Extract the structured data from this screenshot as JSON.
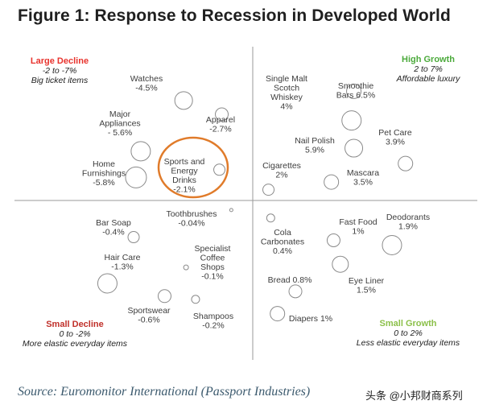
{
  "title": "Figure 1: Response to Recession in Developed World",
  "source": "Source: Euromonitor International (Passport Industries)",
  "watermark": "头条 @小邦财商系列",
  "chart_data": {
    "type": "scatter",
    "title": "Figure 1: Response to Recession in Developed World",
    "axes": {
      "x_range": [
        -1,
        1
      ],
      "y_range": [
        -1,
        1
      ]
    },
    "quadrants": [
      {
        "key": "large_decline",
        "name": "Large Decline",
        "range": "-2 to -7%",
        "note": "Big ticket items",
        "color": "#e8322c",
        "position": "top-left"
      },
      {
        "key": "high_growth",
        "name": "High Growth",
        "range": "2 to 7%",
        "note": "Affordable luxury",
        "color": "#4caa3c",
        "position": "top-right"
      },
      {
        "key": "small_decline",
        "name": "Small Decline",
        "range": "0 to -2%",
        "note": "More elastic everyday items",
        "color": "#c0302a",
        "position": "bottom-left"
      },
      {
        "key": "small_growth",
        "name": "Small Growth",
        "range": "0 to 2%",
        "note": "Less elastic everyday items",
        "color": "#8cc04a",
        "position": "bottom-right"
      }
    ],
    "points": [
      {
        "lines": [
          "Watches",
          "-4.5%"
        ],
        "growth": -4.5,
        "x": -0.29,
        "y": 0.65,
        "r": 11
      },
      {
        "lines": [
          "Apparel",
          "-2.7%"
        ],
        "growth": -2.7,
        "x": -0.13,
        "y": 0.56,
        "r": 8
      },
      {
        "lines": [
          "Major",
          "Appliances",
          "- 5.6%"
        ],
        "growth": -5.6,
        "x": -0.47,
        "y": 0.32,
        "r": 12
      },
      {
        "lines": [
          "Home",
          "Furnishings",
          "-5.8%"
        ],
        "growth": -5.8,
        "x": -0.49,
        "y": 0.15,
        "r": 13
      },
      {
        "lines": [
          "Sports and",
          "Energy",
          "Drinks",
          "-2.1%"
        ],
        "growth": -2.1,
        "x": -0.14,
        "y": 0.2,
        "r": 7,
        "highlight": true
      },
      {
        "lines": [
          "Single Malt",
          "Scotch",
          "Whiskey",
          "4%"
        ],
        "growth": 4.0,
        "x": 0.45,
        "y": 0.71,
        "r": 9
      },
      {
        "lines": [
          "Smoothie",
          "Bars 6.5%"
        ],
        "growth": 6.5,
        "x": 0.44,
        "y": 0.52,
        "r": 12
      },
      {
        "lines": [
          "Nail Polish",
          "5.9%"
        ],
        "growth": 5.9,
        "x": 0.45,
        "y": 0.34,
        "r": 11
      },
      {
        "lines": [
          "Pet Care",
          "3.9%"
        ],
        "growth": 3.9,
        "x": 0.68,
        "y": 0.24,
        "r": 9
      },
      {
        "lines": [
          "Cigarettes",
          "2%"
        ],
        "growth": 2.0,
        "x": 0.07,
        "y": 0.07,
        "r": 7
      },
      {
        "lines": [
          "Mascara",
          "3.5%"
        ],
        "growth": 3.5,
        "x": 0.35,
        "y": 0.12,
        "r": 9
      },
      {
        "lines": [
          "Toothbrushes",
          "-0.04%"
        ],
        "growth": -0.04,
        "x": -0.09,
        "y": -0.06,
        "r": 2
      },
      {
        "lines": [
          "Bar Soap",
          "-0.4%"
        ],
        "growth": -0.4,
        "x": -0.5,
        "y": -0.23,
        "r": 7
      },
      {
        "lines": [
          "Hair Care",
          "-1.3%"
        ],
        "growth": -1.3,
        "x": -0.61,
        "y": -0.52,
        "r": 12
      },
      {
        "lines": [
          "Specialist",
          "Coffee",
          "Shops",
          "-0.1%"
        ],
        "growth": -0.1,
        "x": -0.28,
        "y": -0.42,
        "r": 3
      },
      {
        "lines": [
          "Sportswear",
          "-0.6%"
        ],
        "growth": -0.6,
        "x": -0.37,
        "y": -0.6,
        "r": 8
      },
      {
        "lines": [
          "Shampoos",
          "-0.2%"
        ],
        "growth": -0.2,
        "x": -0.24,
        "y": -0.62,
        "r": 5
      },
      {
        "lines": [
          "Cola",
          "Carbonates",
          "0.4%"
        ],
        "growth": 0.4,
        "x": 0.08,
        "y": -0.11,
        "r": 5
      },
      {
        "lines": [
          "Fast Food",
          "1%"
        ],
        "growth": 1.0,
        "x": 0.36,
        "y": -0.25,
        "r": 8
      },
      {
        "lines": [
          "Deodorants",
          "1.9%"
        ],
        "growth": 1.9,
        "x": 0.62,
        "y": -0.28,
        "r": 12
      },
      {
        "lines": [
          "Eye Liner",
          "1.5%"
        ],
        "growth": 1.5,
        "x": 0.39,
        "y": -0.4,
        "r": 10
      },
      {
        "lines": [
          "Bread 0.8%"
        ],
        "growth": 0.8,
        "x": 0.19,
        "y": -0.57,
        "r": 8
      },
      {
        "lines": [
          "Diapers 1%"
        ],
        "growth": 1.0,
        "x": 0.11,
        "y": -0.71,
        "r": 9
      }
    ]
  }
}
